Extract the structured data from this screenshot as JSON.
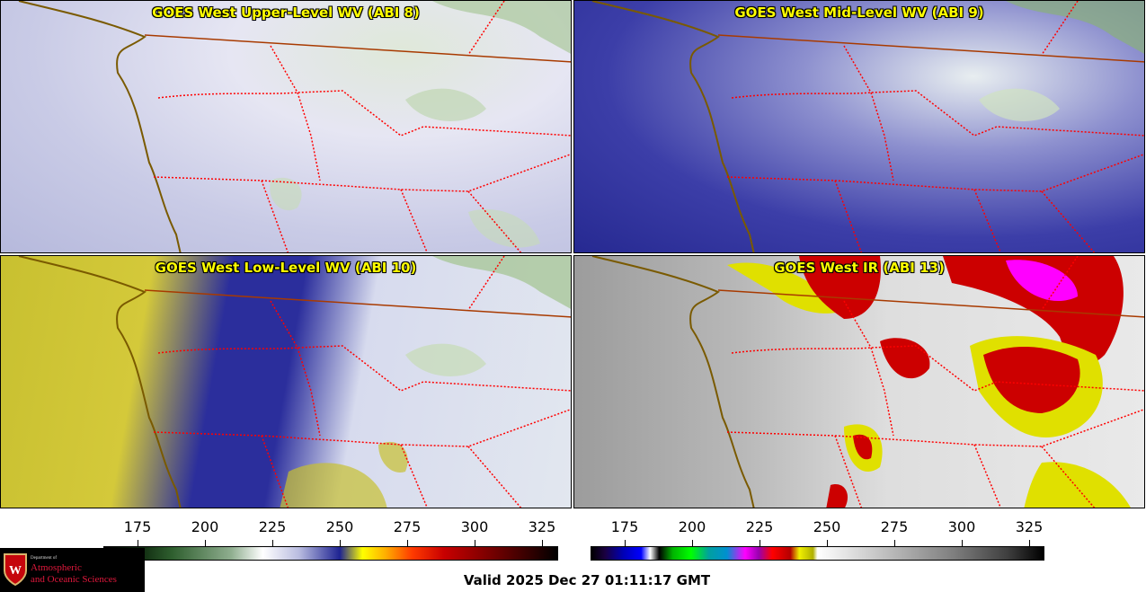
{
  "panels": {
    "wv8": {
      "title": "GOES West Upper-Level WV (ABI 8)"
    },
    "wv9": {
      "title": "GOES West Mid-Level WV (ABI 9)"
    },
    "wv10": {
      "title": "GOES West Low-Level WV (ABI 10)"
    },
    "ir13": {
      "title": "GOES West IR (ABI 13)"
    }
  },
  "colorbars": {
    "wv": {
      "ticks": [
        "175",
        "200",
        "225",
        "250",
        "275",
        "300",
        "325"
      ]
    },
    "ir": {
      "ticks": [
        "175",
        "200",
        "225",
        "250",
        "275",
        "300",
        "325"
      ]
    }
  },
  "logo": {
    "dept": "Department of",
    "line1": "Atmospheric",
    "line2": "and Oceanic Sciences"
  },
  "valid_time": "Valid 2025 Dec 27 01:11:17 GMT",
  "colors": {
    "title_text": "#ffff00",
    "state_border": "#ff0000",
    "coastline": "#7a5a00",
    "intl_border": "#a83a00"
  }
}
